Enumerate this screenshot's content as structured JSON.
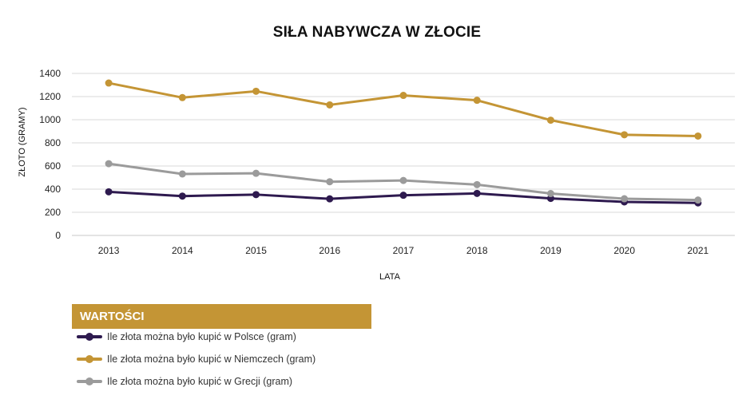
{
  "chart_data": {
    "type": "line",
    "title": "SIŁA NABYWCZA W ZŁOCIE",
    "xlabel": "LATA",
    "ylabel": "ZŁOTO (GRAMY)",
    "categories": [
      "2013",
      "2014",
      "2015",
      "2016",
      "2017",
      "2018",
      "2019",
      "2020",
      "2021"
    ],
    "ylim": [
      0,
      1400
    ],
    "yticks": [
      0,
      200,
      400,
      600,
      800,
      1000,
      1200,
      1400
    ],
    "grid": true,
    "legend_title": "WARTOŚCI",
    "legend_position": "bottom-left",
    "series": [
      {
        "name": "Ile złota można było kupić w Polsce (gram)",
        "color": "#2e1a4f",
        "values": [
          377,
          340,
          353,
          316,
          347,
          363,
          320,
          290,
          281
        ]
      },
      {
        "name": "Ile złota można było kupić w Niemczech (gram)",
        "color": "#c49535",
        "values": [
          1317,
          1191,
          1246,
          1128,
          1210,
          1168,
          996,
          870,
          859
        ]
      },
      {
        "name": "Ile złota można było kupić w Grecji (gram)",
        "color": "#9b9b9b",
        "values": [
          620,
          531,
          537,
          464,
          475,
          439,
          362,
          317,
          306
        ]
      }
    ]
  }
}
